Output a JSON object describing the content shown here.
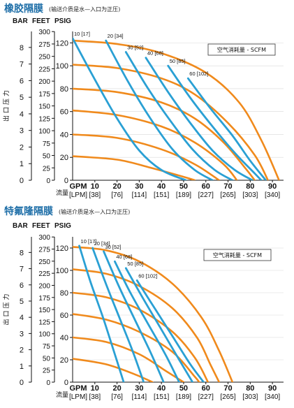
{
  "chart_data": [
    {
      "type": "line",
      "title": "橡胶隔膜",
      "subtitle": "(输送介质是水—入口为正压)",
      "y_headers": [
        "BAR",
        "FEET",
        "PSIG"
      ],
      "y_bar_ticks": [
        0,
        1,
        2,
        3,
        4,
        5,
        6,
        7,
        8
      ],
      "y_feet_ticks": [
        0,
        25,
        50,
        75,
        100,
        125,
        150,
        175,
        200,
        225,
        250,
        275,
        300
      ],
      "y_psig_ticks": [
        0,
        20,
        40,
        60,
        80,
        100,
        120
      ],
      "ylim": [
        0,
        130
      ],
      "ylabel": "出口压力",
      "x_gpm_ticks": [
        0,
        10,
        20,
        30,
        40,
        50,
        60,
        70,
        80,
        90
      ],
      "x_lpm_labels": [
        "[38]",
        "[76]",
        "[114]",
        "[151]",
        "[189]",
        "[227]",
        "[265]",
        "[303]",
        "[340]"
      ],
      "x_unit_top": "GPM",
      "x_unit_bottom": "[LPM]",
      "xlabel": "流量",
      "xlim": [
        0,
        95
      ],
      "legend": "空气消耗量 - SCFM",
      "pressure_curves": [
        {
          "psig": 120,
          "points": [
            [
              0,
              122
            ],
            [
              20,
              119
            ],
            [
              40,
              111
            ],
            [
              60,
              94
            ],
            [
              75,
              68
            ],
            [
              85,
              35
            ],
            [
              93,
              0
            ]
          ]
        },
        {
          "psig": 100,
          "points": [
            [
              0,
              101
            ],
            [
              20,
              98
            ],
            [
              40,
              89
            ],
            [
              55,
              75
            ],
            [
              70,
              50
            ],
            [
              82,
              22
            ],
            [
              88,
              0
            ]
          ]
        },
        {
          "psig": 80,
          "points": [
            [
              0,
              80
            ],
            [
              20,
              77
            ],
            [
              40,
              68
            ],
            [
              55,
              54
            ],
            [
              68,
              33
            ],
            [
              78,
              10
            ],
            [
              82,
              0
            ]
          ]
        },
        {
          "psig": 60,
          "points": [
            [
              0,
              61
            ],
            [
              20,
              57
            ],
            [
              40,
              47
            ],
            [
              55,
              33
            ],
            [
              68,
              14
            ],
            [
              74,
              0
            ]
          ]
        },
        {
          "psig": 40,
          "points": [
            [
              0,
              40
            ],
            [
              20,
              37
            ],
            [
              40,
              27
            ],
            [
              55,
              14
            ],
            [
              66,
              0
            ]
          ]
        },
        {
          "psig": 20,
          "points": [
            [
              0,
              21
            ],
            [
              20,
              18
            ],
            [
              35,
              11
            ],
            [
              50,
              3
            ],
            [
              55,
              0
            ]
          ]
        }
      ],
      "air_curves": [
        {
          "label": "10 [17]",
          "points": [
            [
              0,
              124
            ],
            [
              10,
              88
            ],
            [
              20,
              54
            ],
            [
              30,
              26
            ],
            [
              40,
              9
            ],
            [
              51,
              0
            ]
          ]
        },
        {
          "label": "20 [34]",
          "points": [
            [
              15,
              122
            ],
            [
              25,
              86
            ],
            [
              35,
              54
            ],
            [
              45,
              27
            ],
            [
              55,
              9
            ],
            [
              63,
              0
            ]
          ]
        },
        {
          "label": "30 [52]",
          "points": [
            [
              24,
              112
            ],
            [
              34,
              80
            ],
            [
              44,
              52
            ],
            [
              54,
              27
            ],
            [
              64,
              9
            ],
            [
              72,
              0
            ]
          ]
        },
        {
          "label": "40 [68]",
          "points": [
            [
              33,
              107
            ],
            [
              43,
              77
            ],
            [
              53,
              50
            ],
            [
              63,
              26
            ],
            [
              73,
              9
            ],
            [
              81,
              0
            ]
          ]
        },
        {
          "label": "50 [85]",
          "points": [
            [
              43,
              100
            ],
            [
              53,
              72
            ],
            [
              63,
              47
            ],
            [
              73,
              24
            ],
            [
              82,
              6
            ],
            [
              85,
              0
            ]
          ]
        },
        {
          "label": "60 [102]",
          "points": [
            [
              52,
              89
            ],
            [
              62,
              63
            ],
            [
              72,
              39
            ],
            [
              80,
              17
            ],
            [
              87,
              0
            ]
          ]
        }
      ]
    },
    {
      "type": "line",
      "title": "特氟隆隔膜",
      "subtitle": "(输送介质是水—入口为正压)",
      "y_headers": [
        "BAR",
        "FEET",
        "PSIG"
      ],
      "y_bar_ticks": [
        0,
        1,
        2,
        3,
        4,
        5,
        6,
        7,
        8
      ],
      "y_feet_ticks": [
        0,
        25,
        50,
        75,
        100,
        125,
        150,
        175,
        200,
        225,
        250,
        275,
        300
      ],
      "y_psig_ticks": [
        0,
        20,
        40,
        60,
        80,
        100,
        120
      ],
      "ylim": [
        0,
        130
      ],
      "ylabel": "出口压力",
      "x_gpm_ticks": [
        0,
        10,
        20,
        30,
        40,
        50,
        60,
        70,
        80,
        90
      ],
      "x_lpm_labels": [
        "[38]",
        "[76]",
        "[114]",
        "[151]",
        "[189]",
        "[227]",
        "[265]",
        "[303]",
        "[340]"
      ],
      "x_unit_top": "GPM",
      "x_unit_bottom": "[LPM]",
      "xlabel": "流量",
      "xlim": [
        0,
        95
      ],
      "legend": "空气消耗量 - SCFM",
      "pressure_curves": [
        {
          "psig": 120,
          "points": [
            [
              0,
              121
            ],
            [
              15,
              118
            ],
            [
              30,
              108
            ],
            [
              45,
              88
            ],
            [
              58,
              58
            ],
            [
              66,
              28
            ],
            [
              72,
              0
            ]
          ]
        },
        {
          "psig": 100,
          "points": [
            [
              0,
              101
            ],
            [
              15,
              97
            ],
            [
              30,
              86
            ],
            [
              45,
              66
            ],
            [
              56,
              40
            ],
            [
              62,
              16
            ],
            [
              66,
              0
            ]
          ]
        },
        {
          "psig": 80,
          "points": [
            [
              0,
              80
            ],
            [
              15,
              76
            ],
            [
              30,
              65
            ],
            [
              45,
              45
            ],
            [
              55,
              22
            ],
            [
              61,
              0
            ]
          ]
        },
        {
          "psig": 60,
          "points": [
            [
              0,
              61
            ],
            [
              15,
              56
            ],
            [
              30,
              45
            ],
            [
              45,
              27
            ],
            [
              55,
              5
            ],
            [
              57,
              0
            ]
          ]
        },
        {
          "psig": 40,
          "points": [
            [
              0,
              40
            ],
            [
              15,
              36
            ],
            [
              30,
              25
            ],
            [
              42,
              10
            ],
            [
              50,
              0
            ]
          ]
        },
        {
          "psig": 20,
          "points": [
            [
              0,
              21
            ],
            [
              15,
              16
            ],
            [
              28,
              7
            ],
            [
              36,
              0
            ]
          ]
        }
      ],
      "air_curves": [
        {
          "label": "10 [17]",
          "points": [
            [
              3,
              122
            ],
            [
              8,
              90
            ],
            [
              14,
              56
            ],
            [
              19,
              25
            ],
            [
              23,
              0
            ]
          ]
        },
        {
          "label": "20 [34]",
          "points": [
            [
              9,
              120
            ],
            [
              15,
              88
            ],
            [
              21,
              58
            ],
            [
              27,
              28
            ],
            [
              32,
              0
            ]
          ]
        },
        {
          "label": "30 [52]",
          "points": [
            [
              14,
              117
            ],
            [
              21,
              85
            ],
            [
              28,
              56
            ],
            [
              35,
              27
            ],
            [
              41,
              0
            ]
          ]
        },
        {
          "label": "40 [68]",
          "points": [
            [
              19,
              108
            ],
            [
              26,
              80
            ],
            [
              34,
              52
            ],
            [
              42,
              24
            ],
            [
              48,
              0
            ]
          ]
        },
        {
          "label": "50 [85]",
          "points": [
            [
              24,
              102
            ],
            [
              32,
              74
            ],
            [
              40,
              47
            ],
            [
              48,
              20
            ],
            [
              54,
              0
            ]
          ]
        },
        {
          "label": "60 [102]",
          "points": [
            [
              29,
              91
            ],
            [
              37,
              66
            ],
            [
              45,
              41
            ],
            [
              53,
              16
            ],
            [
              59,
              0
            ]
          ]
        }
      ]
    }
  ]
}
